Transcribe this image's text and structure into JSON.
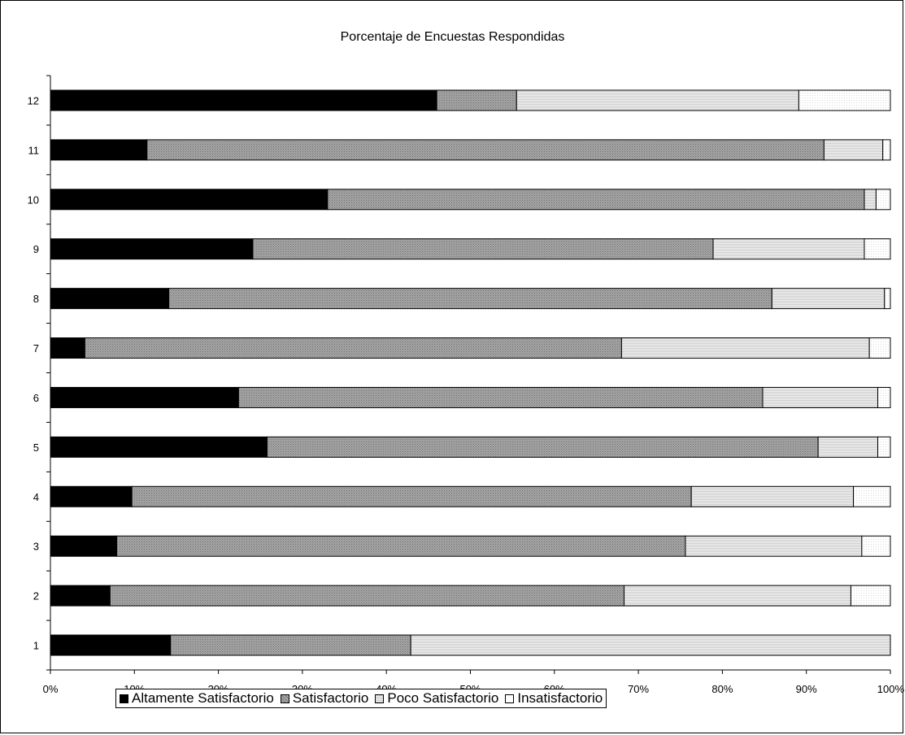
{
  "chart_data": {
    "type": "bar",
    "orientation": "horizontal",
    "stacked": "100%",
    "title": "Porcentaje de Encuestas Respondidas",
    "xlabel": "",
    "ylabel": "",
    "categories": [
      "1",
      "2",
      "3",
      "4",
      "5",
      "6",
      "7",
      "8",
      "9",
      "10",
      "11",
      "12"
    ],
    "x_ticks": [
      "0%",
      "10%",
      "20%",
      "30%",
      "40%",
      "50%",
      "60%",
      "70%",
      "80%",
      "90%",
      "100%"
    ],
    "xlim": [
      0,
      100
    ],
    "legend_position": "bottom",
    "series": [
      {
        "name": "Altamente Satisfactorio",
        "color": "#000000",
        "values": [
          14.3,
          7.1,
          7.9,
          9.7,
          25.8,
          22.4,
          4.1,
          14.1,
          24.1,
          33.0,
          11.5,
          46.0
        ]
      },
      {
        "name": "Satisfactorio",
        "color": "#9a9a9a",
        "values": [
          28.6,
          61.2,
          67.7,
          66.6,
          65.6,
          62.4,
          63.9,
          71.8,
          54.8,
          63.9,
          80.6,
          9.5
        ]
      },
      {
        "name": "Poco Satisfactorio",
        "color": "#e3e3e3",
        "values": [
          57.1,
          27.0,
          21.0,
          19.3,
          7.1,
          13.7,
          29.5,
          13.4,
          18.0,
          1.4,
          7.0,
          33.6
        ]
      },
      {
        "name": "Insatisfactorio",
        "color": "#ffffff",
        "values": [
          0.0,
          4.7,
          3.4,
          4.4,
          1.5,
          1.5,
          2.5,
          0.7,
          3.1,
          1.7,
          0.9,
          10.9
        ]
      }
    ]
  }
}
